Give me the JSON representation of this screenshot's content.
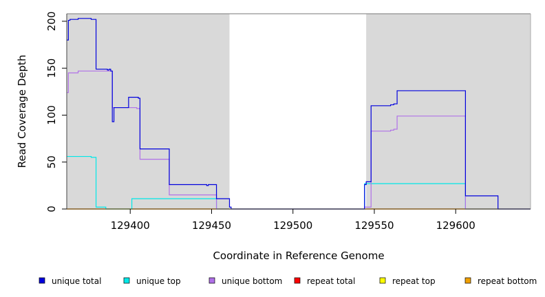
{
  "chart_data": {
    "type": "line",
    "title": "",
    "xlabel": "Coordinate in Reference Genome",
    "ylabel": "Read Coverage Depth",
    "xlim": [
      129361,
      129646
    ],
    "ylim": [
      0,
      208
    ],
    "x_ticks": [
      129400,
      129450,
      129500,
      129550,
      129600
    ],
    "y_ticks": [
      0,
      50,
      100,
      150,
      200
    ],
    "x_tick_labels": [
      "129400",
      "129450",
      "129500",
      "129550",
      "129600"
    ],
    "y_tick_labels": [
      "0",
      "50",
      "100",
      "150",
      "200"
    ],
    "shaded_regions": [
      {
        "x0": 129361,
        "x1": 129461,
        "color": "#d9d9d9"
      },
      {
        "x0": 129545,
        "x1": 129646,
        "color": "#d9d9d9"
      }
    ],
    "legend_placement": "bottom",
    "series": [
      {
        "name": "unique total",
        "color": "#0000dd",
        "points": [
          [
            129361,
            180
          ],
          [
            129362,
            180
          ],
          [
            129362,
            201
          ],
          [
            129363,
            201
          ],
          [
            129363,
            202
          ],
          [
            129368,
            202
          ],
          [
            129368,
            203
          ],
          [
            129376,
            203
          ],
          [
            129376,
            202
          ],
          [
            129379,
            202
          ],
          [
            129379,
            149
          ],
          [
            129386,
            149
          ],
          [
            129386,
            148
          ],
          [
            129387,
            148
          ],
          [
            129387,
            149
          ],
          [
            129388,
            149
          ],
          [
            129388,
            147
          ],
          [
            129389,
            147
          ],
          [
            129389,
            93
          ],
          [
            129390,
            93
          ],
          [
            129390,
            108
          ],
          [
            129399,
            108
          ],
          [
            129399,
            119
          ],
          [
            129405,
            119
          ],
          [
            129405,
            118
          ],
          [
            129406,
            118
          ],
          [
            129406,
            64
          ],
          [
            129424,
            64
          ],
          [
            129424,
            26
          ],
          [
            129447,
            26
          ],
          [
            129447,
            25
          ],
          [
            129448,
            25
          ],
          [
            129448,
            26
          ],
          [
            129453,
            26
          ],
          [
            129453,
            11
          ],
          [
            129461,
            11
          ],
          [
            129461,
            2
          ],
          [
            129462,
            2
          ],
          [
            129462,
            0
          ],
          [
            129544,
            0
          ],
          [
            129544,
            26
          ],
          [
            129545,
            26
          ],
          [
            129545,
            29
          ],
          [
            129548,
            29
          ],
          [
            129548,
            110
          ],
          [
            129560,
            110
          ],
          [
            129560,
            111
          ],
          [
            129562,
            111
          ],
          [
            129562,
            112
          ],
          [
            129564,
            112
          ],
          [
            129564,
            126
          ],
          [
            129606,
            126
          ],
          [
            129606,
            14
          ],
          [
            129626,
            14
          ],
          [
            129626,
            0
          ],
          [
            129646,
            0
          ]
        ]
      },
      {
        "name": "unique top",
        "color": "#00e8e8",
        "points": [
          [
            129361,
            56
          ],
          [
            129376,
            56
          ],
          [
            129376,
            55
          ],
          [
            129379,
            55
          ],
          [
            129379,
            2
          ],
          [
            129385,
            2
          ],
          [
            129385,
            0
          ],
          [
            129401,
            0
          ],
          [
            129401,
            11
          ],
          [
            129453,
            11
          ],
          [
            129453,
            0
          ],
          [
            129544,
            0
          ],
          [
            129544,
            27
          ],
          [
            129606,
            27
          ],
          [
            129606,
            0
          ],
          [
            129646,
            0
          ]
        ]
      },
      {
        "name": "unique bottom",
        "color": "#b070e8",
        "points": [
          [
            129361,
            124
          ],
          [
            129362,
            124
          ],
          [
            129362,
            145
          ],
          [
            129368,
            145
          ],
          [
            129368,
            147
          ],
          [
            129389,
            147
          ],
          [
            129389,
            108
          ],
          [
            129404,
            108
          ],
          [
            129404,
            107
          ],
          [
            129406,
            107
          ],
          [
            129406,
            53
          ],
          [
            129424,
            53
          ],
          [
            129424,
            15
          ],
          [
            129453,
            15
          ],
          [
            129453,
            0
          ],
          [
            129544,
            0
          ],
          [
            129544,
            2
          ],
          [
            129548,
            2
          ],
          [
            129548,
            83
          ],
          [
            129560,
            83
          ],
          [
            129560,
            84
          ],
          [
            129562,
            84
          ],
          [
            129562,
            85
          ],
          [
            129564,
            85
          ],
          [
            129564,
            99
          ],
          [
            129606,
            99
          ],
          [
            129606,
            0
          ],
          [
            129646,
            0
          ]
        ]
      },
      {
        "name": "repeat total",
        "color": "#ff0000",
        "points": [
          [
            129361,
            0
          ],
          [
            129646,
            0
          ]
        ]
      },
      {
        "name": "repeat top",
        "color": "#ffff00",
        "points": [
          [
            129361,
            0
          ],
          [
            129646,
            0
          ]
        ]
      },
      {
        "name": "repeat bottom",
        "color": "#f0a000",
        "points": [
          [
            129361,
            0
          ],
          [
            129646,
            0
          ]
        ]
      }
    ]
  }
}
